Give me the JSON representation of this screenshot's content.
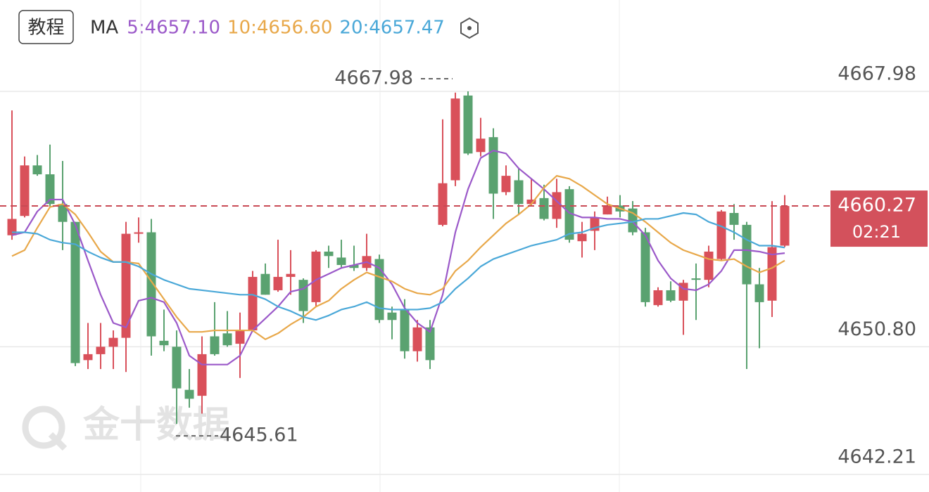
{
  "header": {
    "button": "教程",
    "watermark": "金十数据"
  },
  "chart_data": {
    "type": "candlestick",
    "ylim": [
      4642.21,
      4667.98
    ],
    "yticks": [
      4642.21,
      {
        "value": 4650.8,
        "label": "4650.80"
      },
      4667.98
    ],
    "grid": true,
    "up_color": "#d9505a",
    "down_color": "#5aa270",
    "ohlc": [
      [
        4658.3,
        4666.7,
        4658.0,
        4659.4
      ],
      [
        4659.6,
        4663.6,
        4659.5,
        4663.0
      ],
      [
        4663.0,
        4663.7,
        4662.3,
        4662.4
      ],
      [
        4662.4,
        4664.4,
        4660.2,
        4660.4
      ],
      [
        4660.4,
        4663.3,
        4657.3,
        4659.2
      ],
      [
        4659.2,
        4659.2,
        4649.5,
        4649.7
      ],
      [
        4649.9,
        4652.4,
        4649.3,
        4650.3
      ],
      [
        4650.3,
        4652.4,
        4649.3,
        4650.8
      ],
      [
        4650.8,
        4651.9,
        4649.3,
        4651.4
      ],
      [
        4651.4,
        4659.2,
        4649.1,
        4658.4
      ],
      [
        4658.4,
        4659.5,
        4657.8,
        4658.5
      ],
      [
        4658.5,
        4659.4,
        4650.2,
        4651.5
      ],
      [
        4651.2,
        4653.3,
        4650.5,
        4650.9
      ],
      [
        4650.8,
        4651.9,
        4645.61,
        4648.0
      ],
      [
        4647.9,
        4649.3,
        4646.7,
        4647.3
      ],
      [
        4647.5,
        4651.5,
        4646.3,
        4650.3
      ],
      [
        4651.5,
        4653.8,
        4650.2,
        4650.3
      ],
      [
        4651.7,
        4653.2,
        4650.8,
        4650.9
      ],
      [
        4651.0,
        4653.1,
        4648.7,
        4651.9
      ],
      [
        4651.9,
        4655.9,
        4651.8,
        4655.5
      ],
      [
        4655.7,
        4656.4,
        4654.3,
        4654.3
      ],
      [
        4654.6,
        4658.0,
        4654.5,
        4655.5
      ],
      [
        4655.5,
        4657.3,
        4654.3,
        4655.7
      ],
      [
        4655.3,
        4655.4,
        4652.4,
        4653.2
      ],
      [
        4653.8,
        4657.3,
        4653.5,
        4657.2
      ],
      [
        4657.2,
        4657.6,
        4656.1,
        4656.9
      ],
      [
        4656.8,
        4658.0,
        4656.1,
        4656.3
      ],
      [
        4656.3,
        4657.6,
        4655.9,
        4656.1
      ],
      [
        4656.1,
        4658.4,
        4655.9,
        4656.9
      ],
      [
        4656.7,
        4657.0,
        4652.4,
        4652.6
      ],
      [
        4653.1,
        4653.5,
        4651.3,
        4652.6
      ],
      [
        4653.3,
        4654.0,
        4650.0,
        4650.5
      ],
      [
        4650.5,
        4652.6,
        4649.8,
        4652.1
      ],
      [
        4652.1,
        4652.6,
        4649.3,
        4649.9
      ],
      [
        4659.0,
        4666.1,
        4658.9,
        4661.8
      ],
      [
        4662.0,
        4667.9,
        4661.6,
        4667.5
      ],
      [
        4667.7,
        4667.98,
        4663.7,
        4663.8
      ],
      [
        4663.9,
        4666.2,
        4663.6,
        4664.8
      ],
      [
        4664.9,
        4665.5,
        4659.4,
        4661.1
      ],
      [
        4661.2,
        4663.0,
        4661.0,
        4662.3
      ],
      [
        4662.0,
        4662.8,
        4659.7,
        4660.4
      ],
      [
        4660.4,
        4662.1,
        4660.3,
        4660.7
      ],
      [
        4660.8,
        4661.7,
        4659.3,
        4659.4
      ],
      [
        4659.4,
        4662.1,
        4658.8,
        4661.2
      ],
      [
        4661.4,
        4661.6,
        4657.8,
        4658.0
      ],
      [
        4657.9,
        4659.2,
        4656.8,
        4658.4
      ],
      [
        4658.6,
        4659.9,
        4657.3,
        4659.5
      ],
      [
        4659.7,
        4660.9,
        4659.7,
        4660.3
      ],
      [
        4660.3,
        4661.0,
        4659.5,
        4659.9
      ],
      [
        4660.1,
        4660.6,
        4658.3,
        4658.5
      ],
      [
        4658.5,
        4658.8,
        4653.5,
        4653.8
      ],
      [
        4653.6,
        4654.8,
        4653.5,
        4654.6
      ],
      [
        4654.6,
        4655.2,
        4653.8,
        4653.9
      ],
      [
        4653.9,
        4655.3,
        4651.6,
        4655.1
      ],
      [
        4655.4,
        4656.4,
        4652.6,
        4655.3
      ],
      [
        4655.3,
        4657.6,
        4654.8,
        4657.2
      ],
      [
        4656.7,
        4660.0,
        4656.6,
        4659.9
      ],
      [
        4659.8,
        4660.4,
        4658.0,
        4659.0
      ],
      [
        4659.0,
        4659.2,
        4649.3,
        4655.0
      ],
      [
        4655.0,
        4656.1,
        4650.7,
        4653.8
      ],
      [
        4653.9,
        4660.6,
        4652.8,
        4657.5
      ],
      [
        4657.6,
        4661.0,
        4657.5,
        4660.27
      ]
    ],
    "legend_title": "MA",
    "series": [
      {
        "name": "5:4657.10",
        "color": "#9b59c9",
        "values": [
          4658.3,
          4658.5,
          4659.9,
          4660.7,
          4660.7,
          4659.0,
          4656.6,
          4654.3,
          4652.4,
          4652.1,
          4653.9,
          4654.1,
          4653.8,
          4652.4,
          4650.2,
          4649.6,
          4649.6,
          4649.6,
          4650.2,
          4651.9,
          4652.7,
          4653.5,
          4654.5,
          4654.7,
          4655.3,
          4655.7,
          4656.1,
          4656.3,
          4656.5,
          4656.1,
          4655.0,
          4653.4,
          4652.4,
          4651.8,
          4654.3,
          4658.5,
          4661.4,
          4663.5,
          4664.0,
          4663.8,
          4662.8,
          4662.1,
          4661.4,
          4660.6,
          4659.8,
          4659.5,
          4659.5,
          4659.4,
          4659.4,
          4659.2,
          4658.3,
          4656.6,
          4655.4,
          4654.7,
          4654.6,
          4655.0,
          4655.9,
          4657.3,
          4657.3,
          4657.2,
          4657.0,
          4657.1
        ]
      },
      {
        "name": "10:4656.60",
        "color": "#e8a84a",
        "values": [
          4656.9,
          4657.3,
          4658.8,
          4660.2,
          4660.4,
          4659.7,
          4658.5,
          4657.2,
          4656.5,
          4656.5,
          4656.4,
          4655.2,
          4654.0,
          4652.8,
          4651.8,
          4651.8,
          4651.9,
          4651.9,
          4651.9,
          4651.9,
          4651.3,
          4651.7,
          4652.3,
          4652.8,
          4653.5,
          4653.9,
          4654.7,
          4655.3,
          4655.8,
          4655.5,
          4655.2,
          4654.7,
          4654.4,
          4654.3,
          4654.7,
          4655.9,
          4656.6,
          4657.5,
          4658.3,
          4659.1,
          4659.7,
          4660.4,
          4661.5,
          4662.3,
          4662.1,
          4661.6,
          4661.0,
          4660.4,
          4660.1,
          4659.8,
          4659.2,
          4658.5,
          4657.8,
          4657.3,
          4657.0,
          4656.7,
          4656.6,
          4656.7,
          4656.2,
          4655.8,
          4656.1,
          4656.6
        ]
      },
      {
        "name": "20:4657.47",
        "color": "#4aa8d8",
        "values": [
          4658.5,
          4658.5,
          4658.4,
          4658.0,
          4657.8,
          4657.7,
          4657.2,
          4656.8,
          4656.5,
          4656.5,
          4656.2,
          4655.7,
          4655.3,
          4655.0,
          4654.7,
          4654.6,
          4654.5,
          4654.4,
          4654.3,
          4654.3,
          4654.0,
          4653.5,
          4653.2,
          4652.8,
          4652.6,
          4652.9,
          4653.3,
          4653.5,
          4653.8,
          4653.4,
          4653.3,
          4653.3,
          4653.3,
          4653.4,
          4653.8,
          4654.7,
          4655.4,
          4656.2,
          4656.7,
          4657.0,
          4657.3,
          4657.6,
          4657.8,
          4658.0,
          4658.4,
          4658.5,
          4658.8,
          4659.0,
          4659.1,
          4659.2,
          4659.4,
          4659.4,
          4659.6,
          4659.8,
          4659.7,
          4659.2,
          4658.9,
          4658.5,
          4658.0,
          4657.6,
          4657.6,
          4657.47
        ]
      }
    ],
    "last_price": 4660.27,
    "countdown": "02:21",
    "max_annotation": 4667.98,
    "min_annotation": 4645.61
  }
}
